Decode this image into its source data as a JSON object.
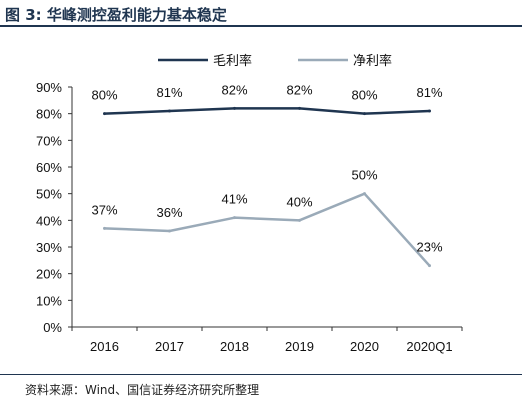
{
  "header": {
    "title": "图 3:  华峰测控盈利能力基本稳定"
  },
  "footer": {
    "source": "资料来源：Wind、国信证券经济研究所整理"
  },
  "chart_data": {
    "type": "line",
    "categories": [
      "2016",
      "2017",
      "2018",
      "2019",
      "2020",
      "2020Q1"
    ],
    "y_ticks": [
      "0%",
      "10%",
      "20%",
      "30%",
      "40%",
      "50%",
      "60%",
      "70%",
      "80%",
      "90%"
    ],
    "ylim": [
      0,
      90
    ],
    "grid": false,
    "legend_position": "top",
    "series": [
      {
        "name": "毛利率",
        "values": [
          80,
          81,
          82,
          82,
          80,
          81
        ],
        "labels": [
          "80%",
          "81%",
          "82%",
          "82%",
          "80%",
          "81%"
        ],
        "color": "#1f3550"
      },
      {
        "name": "净利率",
        "values": [
          37,
          36,
          41,
          40,
          50,
          23
        ],
        "labels": [
          "37%",
          "36%",
          "41%",
          "40%",
          "50%",
          "23%"
        ],
        "color": "#9aaab8"
      }
    ]
  }
}
